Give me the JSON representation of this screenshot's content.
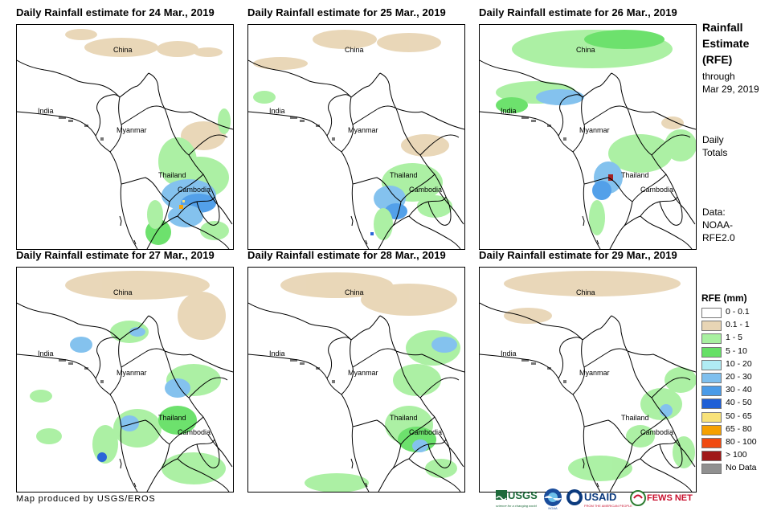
{
  "panels": [
    {
      "title": "Daily Rainfall estimate for 24 Mar., 2019",
      "labels": {
        "china": "China",
        "india": "India",
        "myanmar": "Myanmar",
        "thailand": "Thailand",
        "cambodia": "Cambodia"
      }
    },
    {
      "title": "Daily Rainfall estimate for 25 Mar., 2019",
      "labels": {
        "china": "China",
        "india": "India",
        "myanmar": "Myanmar",
        "thailand": "Thailand",
        "cambodia": "Cambodia"
      }
    },
    {
      "title": "Daily Rainfall estimate for 26 Mar., 2019",
      "labels": {
        "china": "China",
        "india": "India",
        "myanmar": "Myanmar",
        "thailand": "Thailand",
        "cambodia": "Cambodia"
      }
    },
    {
      "title": "Daily Rainfall estimate for 27 Mar., 2019",
      "labels": {
        "china": "China",
        "india": "India",
        "myanmar": "Myanmar",
        "thailand": "Thailand",
        "cambodia": "Cambodia"
      }
    },
    {
      "title": "Daily Rainfall estimate for 28 Mar., 2019",
      "labels": {
        "china": "China",
        "india": "India",
        "myanmar": "Myanmar",
        "thailand": "Thailand",
        "cambodia": "Cambodia"
      }
    },
    {
      "title": "Daily Rainfall estimate for 29 Mar., 2019",
      "labels": {
        "china": "China",
        "india": "India",
        "myanmar": "Myanmar",
        "thailand": "Thailand",
        "cambodia": "Cambodia"
      }
    }
  ],
  "sidebar": {
    "title_line1": "Rainfall",
    "title_line2": "Estimate",
    "title_line3": "(RFE)",
    "through_label": "through",
    "through_date": "Mar 29, 2019",
    "daily_line1": "Daily",
    "daily_line2": "Totals",
    "data_line1": "Data:",
    "data_line2": "NOAA-",
    "data_line3": "RFE2.0"
  },
  "legend": {
    "title": "RFE (mm)",
    "items": [
      {
        "label": "0 - 0.1",
        "color": "#ffffff"
      },
      {
        "label": "0.1 - 1",
        "color": "#e8d5b5"
      },
      {
        "label": "1 - 5",
        "color": "#a8f0a0"
      },
      {
        "label": "5 - 10",
        "color": "#66e066"
      },
      {
        "label": "10 - 20",
        "color": "#b0ecf4"
      },
      {
        "label": "20 - 30",
        "color": "#7ebfee"
      },
      {
        "label": "30 - 40",
        "color": "#4a9be8"
      },
      {
        "label": "40 - 50",
        "color": "#1f5fd6"
      },
      {
        "label": "50 - 65",
        "color": "#f8e27a"
      },
      {
        "label": "65 - 80",
        "color": "#f5a000"
      },
      {
        "label": "80 - 100",
        "color": "#f04a10"
      },
      {
        "label": "> 100",
        "color": "#a01818"
      },
      {
        "label": "No Data",
        "color": "#909090"
      }
    ]
  },
  "credit": "Map produced by USGS/EROS",
  "logos": {
    "usgs": "USGS",
    "usgs_tagline": "science for a changing world",
    "noaa": "NOAA",
    "usaid": "USAID",
    "usaid_tagline": "FROM THE AMERICAN PEOPLE",
    "fewsnet": "FEWS NET"
  }
}
